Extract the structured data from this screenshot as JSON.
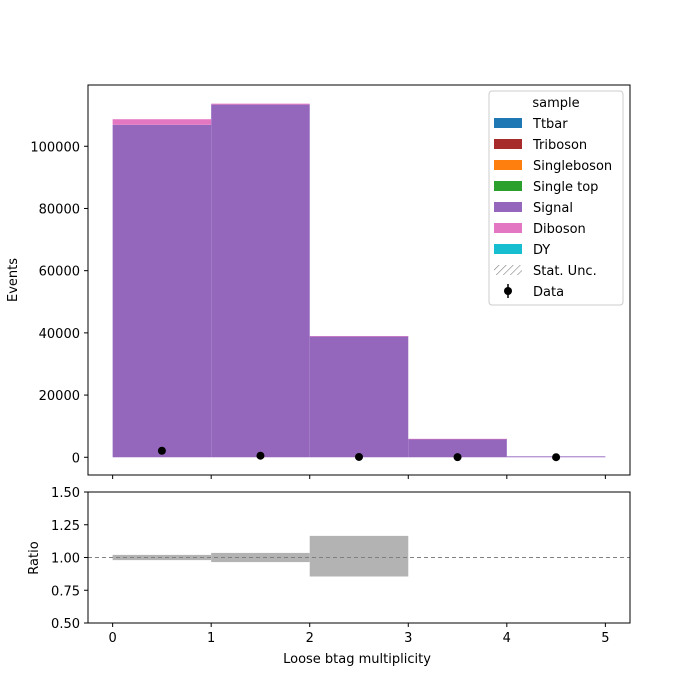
{
  "chart_data": [
    {
      "type": "bar",
      "subtype": "stacked-histogram",
      "ylabel": "Events",
      "xlim": [
        -0.25,
        5.25
      ],
      "ylim": [
        -5700,
        119700
      ],
      "yticks": [
        0,
        20000,
        40000,
        60000,
        80000,
        100000
      ],
      "ytick_labels": [
        "0",
        "20000",
        "40000",
        "60000",
        "80000",
        "100000"
      ],
      "xticks": [
        0,
        1,
        2,
        3,
        4,
        5
      ],
      "bin_edges": [
        0,
        1,
        2,
        3,
        4,
        5
      ],
      "series": [
        {
          "name": "Ttbar",
          "color": "#1f77b4",
          "values": [
            0,
            0,
            0,
            0,
            0
          ]
        },
        {
          "name": "Triboson",
          "color": "#a82b2b",
          "values": [
            0,
            0,
            0,
            0,
            0
          ]
        },
        {
          "name": "Singleboson",
          "color": "#ff7f0e",
          "values": [
            0,
            0,
            0,
            0,
            0
          ]
        },
        {
          "name": "Single top",
          "color": "#2ca02c",
          "values": [
            0,
            0,
            0,
            0,
            0
          ]
        },
        {
          "name": "Signal",
          "color": "#9467bd",
          "values": [
            106900,
            113400,
            38900,
            5900,
            300
          ]
        },
        {
          "name": "Diboson",
          "color": "#e377c2",
          "values": [
            1800,
            300,
            50,
            10,
            0
          ]
        },
        {
          "name": "DY",
          "color": "#17becf",
          "values": [
            0,
            0,
            0,
            0,
            0
          ]
        }
      ],
      "data_points": {
        "name": "Data",
        "x": [
          0.5,
          1.5,
          2.5,
          3.5,
          4.5
        ],
        "y": [
          2100,
          500,
          100,
          50,
          20
        ]
      },
      "legend": {
        "title": "sample",
        "position": "top-right",
        "entries": [
          "Ttbar",
          "Triboson",
          "Singleboson",
          "Single top",
          "Signal",
          "Diboson",
          "DY",
          "Stat. Unc.",
          "Data"
        ]
      },
      "grid": false
    },
    {
      "type": "bar",
      "subtype": "ratio-uncertainty",
      "xlabel": "Loose btag multiplicity",
      "ylabel": "Ratio",
      "xlim": [
        -0.25,
        5.25
      ],
      "ylim": [
        0.5,
        1.5
      ],
      "yticks": [
        0.5,
        0.75,
        1.0,
        1.25,
        1.5
      ],
      "ytick_labels": [
        "0.50",
        "0.75",
        "1.00",
        "1.25",
        "1.50"
      ],
      "xticks": [
        0,
        1,
        2,
        3,
        4,
        5
      ],
      "xtick_labels": [
        "0",
        "1",
        "2",
        "3",
        "4",
        "5"
      ],
      "reference_line": 1.0,
      "uncertainty_bands": [
        {
          "x0": 0,
          "x1": 1,
          "low": 0.98,
          "high": 1.02
        },
        {
          "x0": 1,
          "x1": 2,
          "low": 0.965,
          "high": 1.035
        },
        {
          "x0": 2,
          "x1": 3,
          "low": 0.855,
          "high": 1.165
        }
      ],
      "band_color": "#b3b3b3"
    }
  ]
}
